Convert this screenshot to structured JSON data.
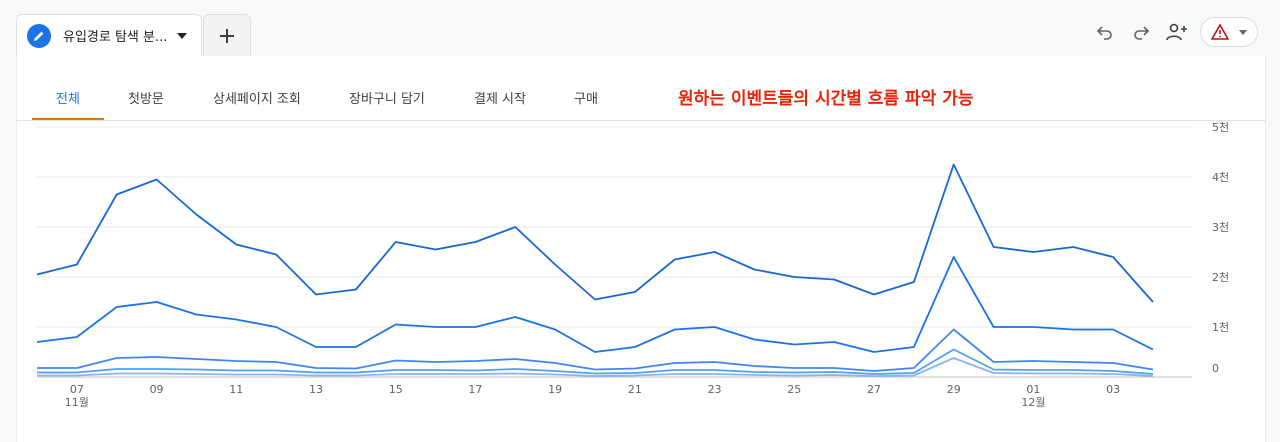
{
  "header": {
    "tab_label": "유입경로 탐색 분...",
    "icons": [
      "pencil-icon",
      "chevron-down-icon",
      "plus-icon",
      "undo-icon",
      "redo-icon",
      "share-user-icon",
      "warning-icon"
    ]
  },
  "subtabs": [
    {
      "label": "전체",
      "active": true
    },
    {
      "label": "첫방문",
      "active": false
    },
    {
      "label": "상세페이지 조회",
      "active": false
    },
    {
      "label": "장바구니 담기",
      "active": false
    },
    {
      "label": "결제 시작",
      "active": false
    },
    {
      "label": "구매",
      "active": false
    }
  ],
  "annotation": "원하는 이벤트들의 시간별 흐름 파악 가능",
  "colors": {
    "accent": "#1a73e8",
    "tab_underline": "#e37400",
    "annotation": "#e8250c"
  },
  "chart_data": {
    "type": "line",
    "x": [
      "11-06",
      "11-07",
      "11-08",
      "11-09",
      "11-10",
      "11-11",
      "11-12",
      "11-13",
      "11-14",
      "11-15",
      "11-16",
      "11-17",
      "11-18",
      "11-19",
      "11-20",
      "11-21",
      "11-22",
      "11-23",
      "11-24",
      "11-25",
      "11-26",
      "11-27",
      "11-28",
      "11-29",
      "11-30",
      "12-01",
      "12-02",
      "12-03",
      "12-04"
    ],
    "x_ticks": [
      {
        "x": "11-07",
        "label": "07",
        "sub": "11월"
      },
      {
        "x": "11-09",
        "label": "09",
        "sub": ""
      },
      {
        "x": "11-11",
        "label": "11",
        "sub": ""
      },
      {
        "x": "11-13",
        "label": "13",
        "sub": ""
      },
      {
        "x": "11-15",
        "label": "15",
        "sub": ""
      },
      {
        "x": "11-17",
        "label": "17",
        "sub": ""
      },
      {
        "x": "11-19",
        "label": "19",
        "sub": ""
      },
      {
        "x": "11-21",
        "label": "21",
        "sub": ""
      },
      {
        "x": "11-23",
        "label": "23",
        "sub": ""
      },
      {
        "x": "11-25",
        "label": "25",
        "sub": ""
      },
      {
        "x": "11-27",
        "label": "27",
        "sub": ""
      },
      {
        "x": "11-29",
        "label": "29",
        "sub": ""
      },
      {
        "x": "12-01",
        "label": "01",
        "sub": "12월"
      },
      {
        "x": "12-03",
        "label": "03",
        "sub": ""
      }
    ],
    "y_ticks": [
      {
        "value": 0,
        "label": "0"
      },
      {
        "value": 1000,
        "label": "1천"
      },
      {
        "value": 2000,
        "label": "2천"
      },
      {
        "value": 3000,
        "label": "3천"
      },
      {
        "value": 4000,
        "label": "4천"
      },
      {
        "value": 5000,
        "label": "5천"
      }
    ],
    "ylim": [
      0,
      5000
    ],
    "grid": true,
    "series": [
      {
        "color": "#1967d2",
        "values": [
          2050,
          2250,
          3650,
          3950,
          3250,
          2650,
          2450,
          1650,
          1750,
          2700,
          2550,
          2700,
          3000,
          2250,
          1550,
          1700,
          2350,
          2500,
          2150,
          2000,
          1950,
          1650,
          1900,
          4250,
          2600,
          2500,
          2600,
          2400,
          1500
        ]
      },
      {
        "color": "#1a73e8",
        "values": [
          700,
          800,
          1400,
          1500,
          1250,
          1150,
          1000,
          600,
          600,
          1050,
          1000,
          1000,
          1200,
          950,
          500,
          600,
          950,
          1000,
          750,
          650,
          700,
          500,
          600,
          2400,
          1000,
          1000,
          950,
          950,
          550
        ]
      },
      {
        "color": "#4285f4",
        "values": [
          180,
          180,
          380,
          400,
          360,
          320,
          300,
          180,
          170,
          330,
          300,
          320,
          360,
          280,
          150,
          170,
          280,
          300,
          220,
          180,
          180,
          120,
          180,
          950,
          300,
          320,
          300,
          280,
          150
        ]
      },
      {
        "color": "#4ea1f3",
        "values": [
          90,
          90,
          160,
          160,
          150,
          130,
          130,
          90,
          90,
          140,
          140,
          130,
          160,
          120,
          70,
          80,
          140,
          140,
          100,
          90,
          100,
          60,
          80,
          550,
          150,
          140,
          140,
          120,
          60
        ]
      },
      {
        "color": "#8ab4f8",
        "values": [
          30,
          30,
          70,
          70,
          60,
          50,
          50,
          30,
          30,
          60,
          60,
          60,
          70,
          50,
          20,
          30,
          60,
          60,
          40,
          30,
          40,
          20,
          30,
          380,
          80,
          70,
          70,
          60,
          20
        ]
      }
    ]
  }
}
